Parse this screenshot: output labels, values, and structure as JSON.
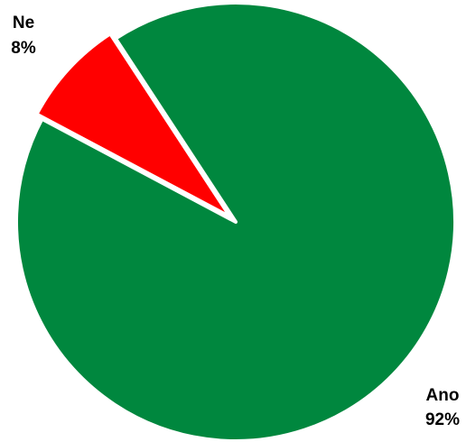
{
  "chart_data": {
    "type": "pie",
    "title": "",
    "categories": [
      "Ne",
      "Ano"
    ],
    "values": [
      8,
      92
    ],
    "value_labels": [
      "8%",
      "92%"
    ],
    "colors": [
      "#ff0000",
      "#00873e"
    ],
    "slice_border_color": "#ffffff",
    "legend": "none"
  }
}
